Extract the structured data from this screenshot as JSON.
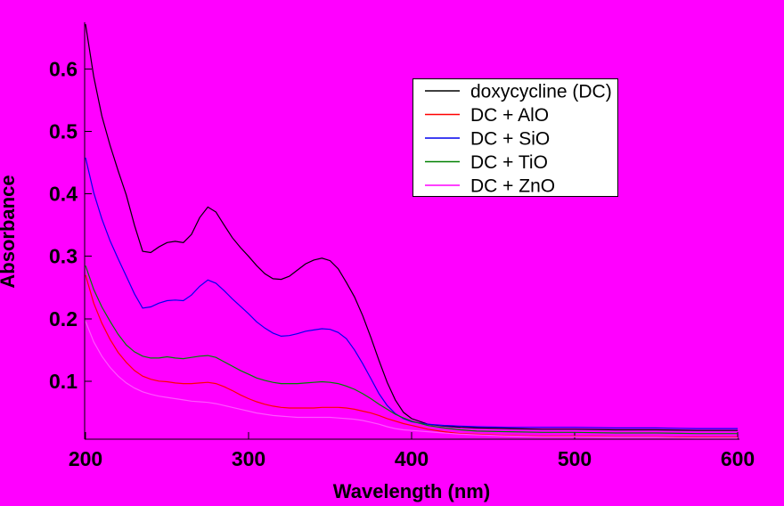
{
  "figure": {
    "background_color": "#FF00FF",
    "axis_color": "#000000",
    "text_color": "#000000",
    "legend_background": "#FFFFFF",
    "legend_border": "#000000"
  },
  "chart_data": {
    "type": "line",
    "title": "",
    "xlabel": "Wavelength (nm)",
    "ylabel": "Absorbance",
    "xlim": [
      200,
      600
    ],
    "ylim": [
      0.007,
      0.675
    ],
    "grid": false,
    "legend_position": "upper-center-right",
    "x_ticks": [
      200,
      300,
      400,
      500,
      600
    ],
    "x_tick_labels": [
      "200",
      "300",
      "400",
      "500",
      "600"
    ],
    "y_ticks": [
      0.1,
      0.2,
      0.3,
      0.4,
      0.5,
      0.6
    ],
    "y_tick_labels": [
      "0.1",
      "0.2",
      "0.3",
      "0.4",
      "0.5",
      "0.6"
    ],
    "x": [
      200,
      205,
      210,
      215,
      220,
      225,
      230,
      235,
      240,
      245,
      250,
      255,
      260,
      265,
      270,
      275,
      280,
      285,
      290,
      295,
      300,
      305,
      310,
      315,
      320,
      325,
      330,
      335,
      340,
      345,
      350,
      355,
      360,
      365,
      370,
      375,
      380,
      385,
      390,
      395,
      400,
      410,
      420,
      430,
      440,
      460,
      480,
      500,
      525,
      550,
      575,
      600
    ],
    "series": [
      {
        "name": "doxycycline (DC)",
        "color": "#000000",
        "y": [
          0.672,
          0.588,
          0.525,
          0.478,
          0.437,
          0.398,
          0.35,
          0.308,
          0.306,
          0.315,
          0.322,
          0.324,
          0.322,
          0.335,
          0.362,
          0.379,
          0.371,
          0.35,
          0.33,
          0.314,
          0.3,
          0.285,
          0.272,
          0.264,
          0.263,
          0.268,
          0.278,
          0.288,
          0.294,
          0.297,
          0.293,
          0.28,
          0.258,
          0.235,
          0.205,
          0.17,
          0.133,
          0.098,
          0.07,
          0.05,
          0.04,
          0.031,
          0.028,
          0.026,
          0.025,
          0.024,
          0.023,
          0.023,
          0.022,
          0.022,
          0.021,
          0.021
        ]
      },
      {
        "name": "DC + AlO",
        "color": "#FF0000",
        "y": [
          0.27,
          0.225,
          0.193,
          0.167,
          0.146,
          0.13,
          0.117,
          0.108,
          0.103,
          0.1,
          0.099,
          0.097,
          0.096,
          0.096,
          0.097,
          0.098,
          0.096,
          0.091,
          0.085,
          0.078,
          0.072,
          0.067,
          0.063,
          0.06,
          0.058,
          0.057,
          0.057,
          0.057,
          0.057,
          0.058,
          0.058,
          0.058,
          0.057,
          0.055,
          0.052,
          0.049,
          0.045,
          0.04,
          0.036,
          0.032,
          0.029,
          0.023,
          0.019,
          0.016,
          0.015,
          0.013,
          0.012,
          0.012,
          0.011,
          0.011,
          0.01,
          0.01
        ]
      },
      {
        "name": "DC + SiO",
        "color": "#0000EE",
        "y": [
          0.458,
          0.402,
          0.36,
          0.325,
          0.296,
          0.268,
          0.24,
          0.217,
          0.219,
          0.225,
          0.229,
          0.23,
          0.229,
          0.238,
          0.252,
          0.262,
          0.257,
          0.245,
          0.232,
          0.22,
          0.208,
          0.195,
          0.185,
          0.177,
          0.172,
          0.173,
          0.176,
          0.18,
          0.182,
          0.184,
          0.183,
          0.178,
          0.168,
          0.15,
          0.128,
          0.104,
          0.08,
          0.061,
          0.048,
          0.04,
          0.035,
          0.031,
          0.029,
          0.028,
          0.027,
          0.026,
          0.026,
          0.026,
          0.025,
          0.025,
          0.024,
          0.024
        ]
      },
      {
        "name": "DC + TiO",
        "color": "#008000",
        "y": [
          0.285,
          0.247,
          0.219,
          0.196,
          0.175,
          0.158,
          0.147,
          0.14,
          0.137,
          0.137,
          0.139,
          0.137,
          0.136,
          0.138,
          0.14,
          0.141,
          0.138,
          0.131,
          0.124,
          0.117,
          0.111,
          0.105,
          0.101,
          0.098,
          0.096,
          0.096,
          0.096,
          0.097,
          0.098,
          0.099,
          0.098,
          0.096,
          0.092,
          0.087,
          0.08,
          0.072,
          0.063,
          0.055,
          0.047,
          0.041,
          0.036,
          0.029,
          0.025,
          0.022,
          0.02,
          0.019,
          0.018,
          0.018,
          0.017,
          0.017,
          0.016,
          0.016
        ]
      },
      {
        "name": "DC + ZnO",
        "color": "#FF00FF",
        "plot_color": "#FF55FF",
        "y": [
          0.196,
          0.163,
          0.14,
          0.122,
          0.108,
          0.097,
          0.089,
          0.083,
          0.079,
          0.076,
          0.074,
          0.072,
          0.07,
          0.068,
          0.067,
          0.066,
          0.064,
          0.061,
          0.058,
          0.055,
          0.052,
          0.049,
          0.047,
          0.045,
          0.044,
          0.043,
          0.042,
          0.042,
          0.042,
          0.042,
          0.042,
          0.041,
          0.04,
          0.039,
          0.037,
          0.034,
          0.031,
          0.027,
          0.024,
          0.022,
          0.021,
          0.019,
          0.017,
          0.015,
          0.014,
          0.012,
          0.011,
          0.011,
          0.01,
          0.01,
          0.009,
          0.009
        ]
      }
    ]
  }
}
